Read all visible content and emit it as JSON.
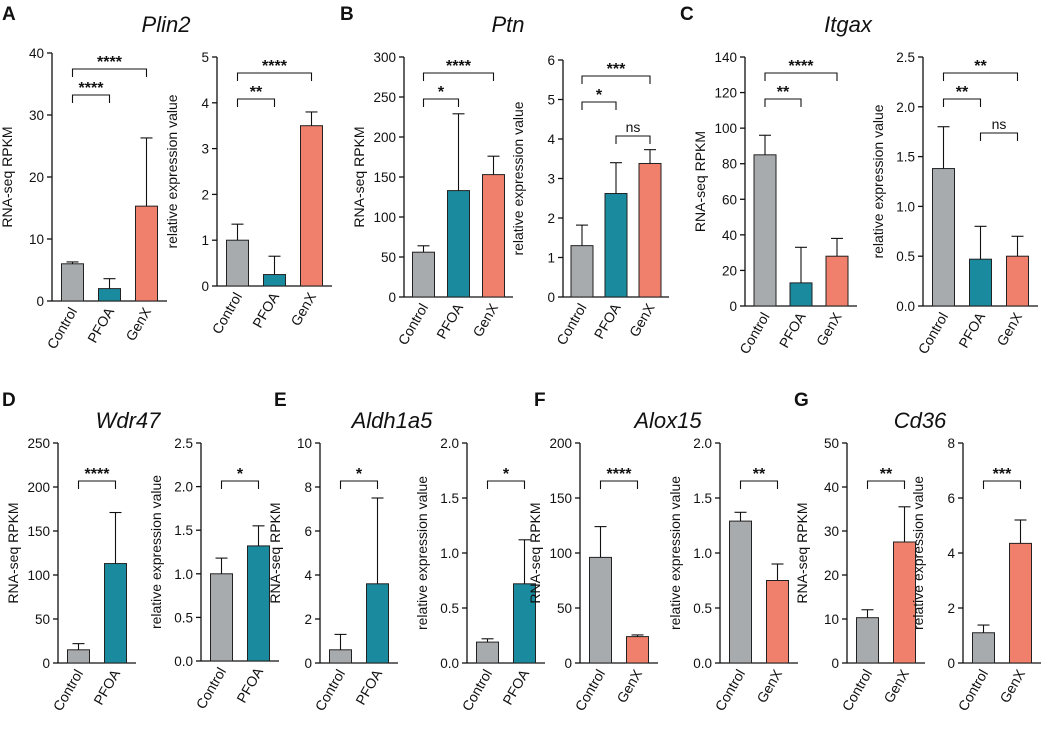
{
  "colors": {
    "Control": "#a8abad",
    "PFOA": "#1a8a9f",
    "GenX": "#f07f6b",
    "axis": "#111111"
  },
  "panels": [
    {
      "letter": "A",
      "gene": "Plin2"
    },
    {
      "letter": "B",
      "gene": "Ptn"
    },
    {
      "letter": "C",
      "gene": "Itgax"
    },
    {
      "letter": "D",
      "gene": "Wdr47"
    },
    {
      "letter": "E",
      "gene": "Aldh1a5"
    },
    {
      "letter": "F",
      "gene": "Alox15"
    },
    {
      "letter": "G",
      "gene": "Cd36"
    }
  ],
  "chart_data": [
    {
      "panel": "A",
      "type": "bar",
      "ylabel": "RNA-seq RPKM",
      "ylim": [
        0,
        40
      ],
      "yticks": [
        "0",
        "10",
        "20",
        "30",
        "40"
      ],
      "categories": [
        "Control",
        "PFOA",
        "GenX"
      ],
      "values": [
        6,
        2,
        15.3
      ],
      "errors": [
        0.3,
        1.6,
        11
      ],
      "brackets": [
        {
          "from": 0,
          "to": 1,
          "label": "****"
        },
        {
          "from": 0,
          "to": 2,
          "label": "****"
        }
      ]
    },
    {
      "panel": "A",
      "type": "bar",
      "ylabel": "relative expression value",
      "ylim": [
        0,
        5
      ],
      "yticks": [
        "0",
        "1",
        "2",
        "3",
        "4",
        "5"
      ],
      "categories": [
        "Control",
        "PFOA",
        "GenX"
      ],
      "values": [
        1.0,
        0.25,
        3.5
      ],
      "errors": [
        0.35,
        0.4,
        0.3
      ],
      "brackets": [
        {
          "from": 0,
          "to": 1,
          "label": "**"
        },
        {
          "from": 0,
          "to": 2,
          "label": "****"
        }
      ]
    },
    {
      "panel": "B",
      "type": "bar",
      "ylabel": "RNA-seq RPKM",
      "ylim": [
        0,
        300
      ],
      "yticks": [
        "0",
        "50",
        "100",
        "150",
        "200",
        "250",
        "300"
      ],
      "categories": [
        "Control",
        "PFOA",
        "GenX"
      ],
      "values": [
        56,
        133,
        153
      ],
      "errors": [
        8,
        96,
        23
      ],
      "brackets": [
        {
          "from": 0,
          "to": 1,
          "label": "*"
        },
        {
          "from": 0,
          "to": 2,
          "label": "****"
        }
      ]
    },
    {
      "panel": "B",
      "type": "bar",
      "ylabel": "relative expression value",
      "ylim": [
        0,
        6
      ],
      "yticks": [
        "0",
        "1",
        "2",
        "3",
        "4",
        "5",
        "6"
      ],
      "categories": [
        "Control",
        "PFOA",
        "GenX"
      ],
      "values": [
        1.3,
        2.62,
        3.38
      ],
      "errors": [
        0.52,
        0.78,
        0.35
      ],
      "brackets": [
        {
          "from": 0,
          "to": 1,
          "label": "*"
        },
        {
          "from": 1,
          "to": 2,
          "label": "ns"
        },
        {
          "from": 0,
          "to": 2,
          "label": "***"
        }
      ]
    },
    {
      "panel": "C",
      "type": "bar",
      "ylabel": "RNA-seq RPKM",
      "ylim": [
        0,
        140
      ],
      "yticks": [
        "0",
        "20",
        "40",
        "60",
        "80",
        "100",
        "120",
        "140"
      ],
      "categories": [
        "Control",
        "PFOA",
        "GenX"
      ],
      "values": [
        85,
        13,
        28
      ],
      "errors": [
        11,
        20,
        10
      ],
      "brackets": [
        {
          "from": 0,
          "to": 1,
          "label": "**"
        },
        {
          "from": 0,
          "to": 2,
          "label": "****"
        }
      ]
    },
    {
      "panel": "C",
      "type": "bar",
      "ylabel": "relative expression value",
      "ylim": [
        0,
        2.5
      ],
      "yticks": [
        "0.0",
        "0.5",
        "1.0",
        "1.5",
        "2.0",
        "2.5"
      ],
      "categories": [
        "Control",
        "PFOA",
        "GenX"
      ],
      "values": [
        1.38,
        0.47,
        0.5
      ],
      "errors": [
        0.42,
        0.33,
        0.2
      ],
      "brackets": [
        {
          "from": 0,
          "to": 1,
          "label": "**"
        },
        {
          "from": 1,
          "to": 2,
          "label": "ns"
        },
        {
          "from": 0,
          "to": 2,
          "label": "**"
        }
      ]
    },
    {
      "panel": "D",
      "type": "bar",
      "ylabel": "RNA-seq RPKM",
      "ylim": [
        0,
        250
      ],
      "yticks": [
        "0",
        "50",
        "100",
        "150",
        "200",
        "250"
      ],
      "categories": [
        "Control",
        "PFOA"
      ],
      "values": [
        15,
        113
      ],
      "errors": [
        7,
        58
      ],
      "brackets": [
        {
          "from": 0,
          "to": 1,
          "label": "****"
        }
      ]
    },
    {
      "panel": "D",
      "type": "bar",
      "ylabel": "relative expression value",
      "ylim": [
        0,
        2.5
      ],
      "yticks": [
        "0.0",
        "0.5",
        "1.0",
        "1.5",
        "2.0",
        "2.5"
      ],
      "categories": [
        "Control",
        "PFOA"
      ],
      "values": [
        1.0,
        1.32
      ],
      "errors": [
        0.18,
        0.23
      ],
      "brackets": [
        {
          "from": 0,
          "to": 1,
          "label": "*"
        }
      ]
    },
    {
      "panel": "E",
      "type": "bar",
      "ylabel": "RNA-seq RPKM",
      "ylim": [
        0,
        10
      ],
      "yticks": [
        "0",
        "2",
        "4",
        "6",
        "8",
        "10"
      ],
      "categories": [
        "Control",
        "PFOA"
      ],
      "values": [
        0.6,
        3.6
      ],
      "errors": [
        0.7,
        3.9
      ],
      "brackets": [
        {
          "from": 0,
          "to": 1,
          "label": "*"
        }
      ]
    },
    {
      "panel": "E",
      "type": "bar",
      "ylabel": "relative expression value",
      "ylim": [
        0,
        2.0
      ],
      "yticks": [
        "0.0",
        "0.5",
        "1.0",
        "1.5",
        "2.0"
      ],
      "categories": [
        "Control",
        "PFOA"
      ],
      "values": [
        0.19,
        0.72
      ],
      "errors": [
        0.03,
        0.4
      ],
      "brackets": [
        {
          "from": 0,
          "to": 1,
          "label": "*"
        }
      ]
    },
    {
      "panel": "F",
      "type": "bar",
      "ylabel": "RNA-seq RPKM",
      "ylim": [
        0,
        200
      ],
      "yticks": [
        "0",
        "50",
        "100",
        "150",
        "200"
      ],
      "categories": [
        "Control",
        "GenX"
      ],
      "values": [
        96,
        24
      ],
      "errors": [
        28,
        1.5
      ],
      "brackets": [
        {
          "from": 0,
          "to": 1,
          "label": "****"
        }
      ]
    },
    {
      "panel": "F",
      "type": "bar",
      "ylabel": "relative expression value",
      "ylim": [
        0,
        2.0
      ],
      "yticks": [
        "0.0",
        "0.5",
        "1.0",
        "1.5",
        "2.0"
      ],
      "categories": [
        "Control",
        "GenX"
      ],
      "values": [
        1.29,
        0.75
      ],
      "errors": [
        0.08,
        0.15
      ],
      "brackets": [
        {
          "from": 0,
          "to": 1,
          "label": "**"
        }
      ]
    },
    {
      "panel": "G",
      "type": "bar",
      "ylabel": "RNA-seq RPKM",
      "ylim": [
        0,
        50
      ],
      "yticks": [
        "0",
        "10",
        "20",
        "30",
        "40",
        "50"
      ],
      "categories": [
        "Control",
        "GenX"
      ],
      "values": [
        10.3,
        27.5
      ],
      "errors": [
        1.8,
        8
      ],
      "brackets": [
        {
          "from": 0,
          "to": 1,
          "label": "**"
        }
      ]
    },
    {
      "panel": "G",
      "type": "bar",
      "ylabel": "relative expression value",
      "ylim": [
        0,
        8
      ],
      "yticks": [
        "0",
        "2",
        "4",
        "6",
        "8"
      ],
      "categories": [
        "Control",
        "GenX"
      ],
      "values": [
        1.1,
        4.35
      ],
      "errors": [
        0.28,
        0.85
      ],
      "brackets": [
        {
          "from": 0,
          "to": 1,
          "label": "***"
        }
      ]
    }
  ]
}
